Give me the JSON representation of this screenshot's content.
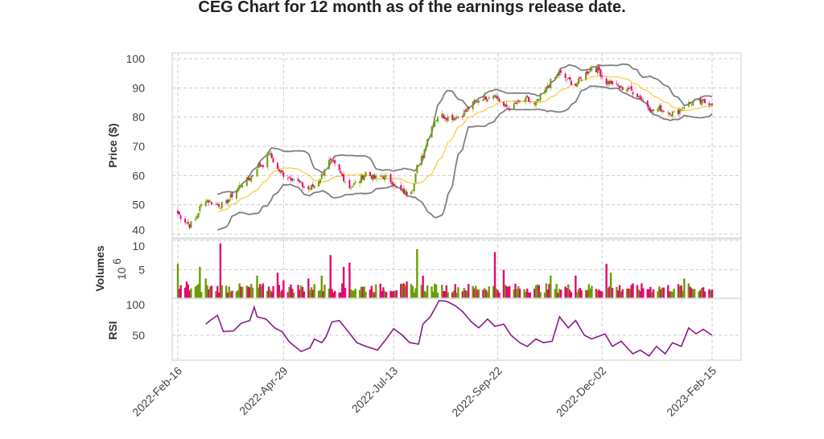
{
  "chart_data": {
    "type": "candlestick",
    "title": "CEG Chart for 12 month as of the earnings release date.",
    "grid": true,
    "colors": {
      "up": "#6b9e00",
      "down": "#e5086f",
      "sma": "#ffc733",
      "bands": "#808080",
      "rsi": "#8b1a8b",
      "grid": "#cccccc"
    },
    "x_ticks": [
      "2022-Feb-16",
      "2022-Apr-29",
      "2022-Jul-13",
      "2022-Sep-22",
      "2022-Dec-02",
      "2023-Feb-15"
    ],
    "x_tick_dates": [
      "2022-02-16",
      "2022-04-29",
      "2022-07-13",
      "2022-09-22",
      "2022-12-02",
      "2023-02-15"
    ],
    "xlim": [
      "2022-02-16",
      "2023-02-15"
    ],
    "price_panel": {
      "ylabel": "Price ($)",
      "ylim": [
        40,
        100
      ],
      "y_ticks": [
        "40",
        "50",
        "60",
        "70",
        "80",
        "90",
        "100"
      ],
      "close": [
        [
          "2022-02-16",
          47
        ],
        [
          "2022-02-20",
          45
        ],
        [
          "2022-02-24",
          43
        ],
        [
          "2022-02-28",
          45
        ],
        [
          "2022-03-03",
          49
        ],
        [
          "2022-03-07",
          52
        ],
        [
          "2022-03-10",
          51
        ],
        [
          "2022-03-15",
          50
        ],
        [
          "2022-03-20",
          50
        ],
        [
          "2022-03-26",
          54
        ],
        [
          "2022-03-31",
          57
        ],
        [
          "2022-04-06",
          59
        ],
        [
          "2022-04-11",
          63
        ],
        [
          "2022-04-16",
          64
        ],
        [
          "2022-04-19",
          68
        ],
        [
          "2022-04-25",
          62
        ],
        [
          "2022-04-30",
          60
        ],
        [
          "2022-05-06",
          59
        ],
        [
          "2022-05-11",
          57
        ],
        [
          "2022-05-15",
          55
        ],
        [
          "2022-05-21",
          57
        ],
        [
          "2022-05-25",
          60
        ],
        [
          "2022-05-29",
          65
        ],
        [
          "2022-06-02",
          64
        ],
        [
          "2022-06-05",
          62
        ],
        [
          "2022-06-09",
          59
        ],
        [
          "2022-06-13",
          56
        ],
        [
          "2022-06-19",
          58
        ],
        [
          "2022-06-24",
          61
        ],
        [
          "2022-06-30",
          59
        ],
        [
          "2022-07-05",
          60
        ],
        [
          "2022-07-12",
          58
        ],
        [
          "2022-07-16",
          55
        ],
        [
          "2022-07-22",
          54
        ],
        [
          "2022-07-26",
          56
        ],
        [
          "2022-07-29",
          63
        ],
        [
          "2022-08-02",
          67
        ],
        [
          "2022-08-05",
          73
        ],
        [
          "2022-08-09",
          78
        ],
        [
          "2022-08-13",
          81
        ],
        [
          "2022-08-18",
          80
        ],
        [
          "2022-08-24",
          80
        ],
        [
          "2022-08-29",
          81
        ],
        [
          "2022-09-04",
          84
        ],
        [
          "2022-09-09",
          86
        ],
        [
          "2022-09-15",
          87
        ],
        [
          "2022-09-20",
          88
        ],
        [
          "2022-09-25",
          84
        ],
        [
          "2022-10-01",
          83
        ],
        [
          "2022-10-06",
          85
        ],
        [
          "2022-10-12",
          86
        ],
        [
          "2022-10-17",
          84
        ],
        [
          "2022-10-23",
          88
        ],
        [
          "2022-10-28",
          92
        ],
        [
          "2022-11-03",
          95
        ],
        [
          "2022-11-08",
          93
        ],
        [
          "2022-11-14",
          91
        ],
        [
          "2022-11-19",
          94
        ],
        [
          "2022-11-25",
          97
        ],
        [
          "2022-11-30",
          96
        ],
        [
          "2022-12-04",
          92
        ],
        [
          "2022-12-08",
          92
        ],
        [
          "2022-12-14",
          90
        ],
        [
          "2022-12-19",
          90
        ],
        [
          "2022-12-25",
          88
        ],
        [
          "2022-12-30",
          86
        ],
        [
          "2023-01-05",
          82
        ],
        [
          "2023-01-10",
          83
        ],
        [
          "2023-01-16",
          82
        ],
        [
          "2023-01-21",
          81
        ],
        [
          "2023-01-27",
          84
        ],
        [
          "2023-02-01",
          85
        ],
        [
          "2023-02-07",
          85
        ],
        [
          "2023-02-15",
          85
        ]
      ]
    },
    "volume_panel": {
      "ylabel": "Volumes",
      "scale_label": "10",
      "scale_exp": "6",
      "ylim": [
        0,
        10
      ],
      "y_ticks": [
        "5",
        "10"
      ],
      "spikes_millions": [
        [
          "2022-02-16",
          6
        ],
        [
          "2022-02-22",
          3
        ],
        [
          "2022-03-03",
          5.5
        ],
        [
          "2022-03-07",
          3.5
        ],
        [
          "2022-03-17",
          9.5
        ],
        [
          "2022-04-11",
          4
        ],
        [
          "2022-04-25",
          4.5
        ],
        [
          "2022-04-29",
          3.2
        ],
        [
          "2022-05-16",
          3.5
        ],
        [
          "2022-05-25",
          4
        ],
        [
          "2022-05-31",
          7.5
        ],
        [
          "2022-06-09",
          5.5
        ],
        [
          "2022-06-13",
          6.2
        ],
        [
          "2022-07-22",
          3
        ],
        [
          "2022-07-29",
          8.5
        ],
        [
          "2022-08-02",
          4
        ],
        [
          "2022-09-20",
          8
        ],
        [
          "2022-09-26",
          5
        ],
        [
          "2022-10-28",
          4
        ],
        [
          "2022-11-14",
          4
        ],
        [
          "2022-12-05",
          6
        ],
        [
          "2022-12-08",
          4.5
        ],
        [
          "2023-01-27",
          3.5
        ]
      ],
      "typical_millions": 1.8
    },
    "rsi_panel": {
      "ylabel": "RSI",
      "ylim": [
        0,
        100
      ],
      "y_ticks": [
        "50",
        "100"
      ],
      "values": [
        [
          "2022-03-07",
          65
        ],
        [
          "2022-03-10",
          70
        ],
        [
          "2022-03-15",
          77
        ],
        [
          "2022-03-19",
          55
        ],
        [
          "2022-03-26",
          56
        ],
        [
          "2022-03-31",
          66
        ],
        [
          "2022-04-06",
          70
        ],
        [
          "2022-04-09",
          88
        ],
        [
          "2022-04-11",
          75
        ],
        [
          "2022-04-17",
          72
        ],
        [
          "2022-04-23",
          60
        ],
        [
          "2022-04-28",
          55
        ],
        [
          "2022-05-03",
          41
        ],
        [
          "2022-05-11",
          28
        ],
        [
          "2022-05-17",
          33
        ],
        [
          "2022-05-20",
          45
        ],
        [
          "2022-05-25",
          40
        ],
        [
          "2022-05-28",
          48
        ],
        [
          "2022-06-01",
          68
        ],
        [
          "2022-06-06",
          70
        ],
        [
          "2022-06-12",
          55
        ],
        [
          "2022-06-18",
          40
        ],
        [
          "2022-06-24",
          35
        ],
        [
          "2022-07-02",
          30
        ],
        [
          "2022-07-08",
          45
        ],
        [
          "2022-07-13",
          59
        ],
        [
          "2022-07-19",
          50
        ],
        [
          "2022-07-24",
          40
        ],
        [
          "2022-07-30",
          38
        ],
        [
          "2022-08-02",
          65
        ],
        [
          "2022-08-07",
          75
        ],
        [
          "2022-08-13",
          97
        ],
        [
          "2022-08-18",
          96
        ],
        [
          "2022-08-24",
          90
        ],
        [
          "2022-08-29",
          82
        ],
        [
          "2022-09-04",
          68
        ],
        [
          "2022-09-09",
          60
        ],
        [
          "2022-09-15",
          72
        ],
        [
          "2022-09-20",
          62
        ],
        [
          "2022-09-26",
          65
        ],
        [
          "2022-10-01",
          50
        ],
        [
          "2022-10-07",
          40
        ],
        [
          "2022-10-12",
          35
        ],
        [
          "2022-10-18",
          45
        ],
        [
          "2022-10-23",
          40
        ],
        [
          "2022-10-29",
          42
        ],
        [
          "2022-11-03",
          75
        ],
        [
          "2022-11-09",
          60
        ],
        [
          "2022-11-14",
          70
        ],
        [
          "2022-11-20",
          50
        ],
        [
          "2022-11-25",
          45
        ],
        [
          "2022-12-04",
          52
        ],
        [
          "2022-12-09",
          35
        ],
        [
          "2022-12-15",
          42
        ],
        [
          "2022-12-23",
          25
        ],
        [
          "2022-12-28",
          30
        ],
        [
          "2023-01-03",
          22
        ],
        [
          "2023-01-08",
          35
        ],
        [
          "2023-01-14",
          25
        ],
        [
          "2023-01-19",
          40
        ],
        [
          "2023-01-25",
          35
        ],
        [
          "2023-01-30",
          60
        ],
        [
          "2023-02-04",
          52
        ],
        [
          "2023-02-09",
          58
        ],
        [
          "2023-02-15",
          50
        ]
      ]
    }
  }
}
